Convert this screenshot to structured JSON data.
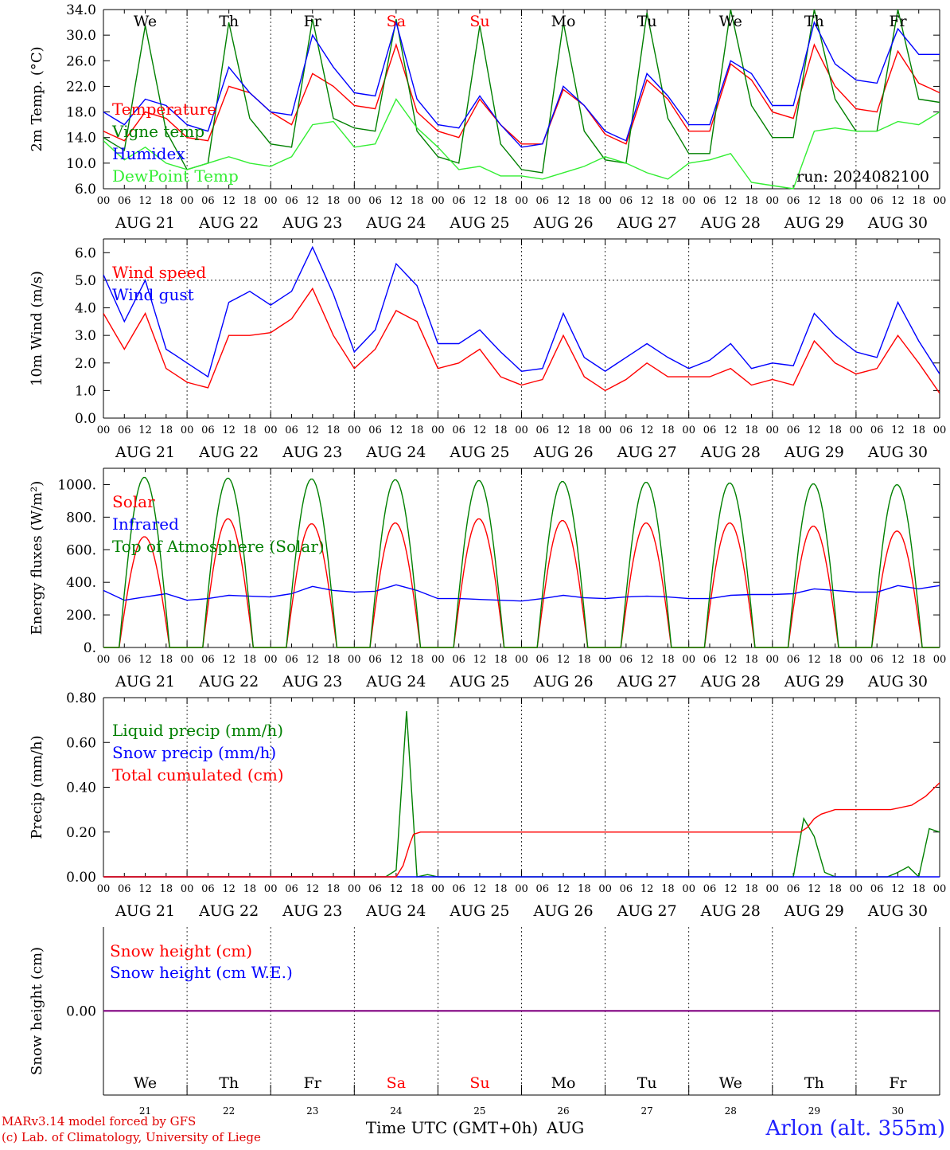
{
  "colors": {
    "red": "#ff0000",
    "green": "#008000",
    "blue": "#0000ff",
    "lightgreen": "#33ee33",
    "purple": "#800080",
    "weekend": "#ff0000",
    "text": "#000000"
  },
  "time_axis": {
    "hour_ticks": [
      "00",
      "06",
      "12",
      "18"
    ],
    "end_tick": "00",
    "date_labels": [
      "AUG 21",
      "AUG 22",
      "AUG 23",
      "AUG 24",
      "AUG 25",
      "AUG 26",
      "AUG 27",
      "AUG 28",
      "AUG 29",
      "AUG 30"
    ],
    "weekdays": [
      "We",
      "Th",
      "Fr",
      "Sa",
      "Su",
      "Mo",
      "Tu",
      "We",
      "Th",
      "Fr"
    ],
    "weekend_flags": [
      false,
      false,
      false,
      true,
      true,
      false,
      false,
      false,
      false,
      false
    ],
    "day_numbers": [
      "21",
      "22",
      "23",
      "24",
      "25",
      "26",
      "27",
      "28",
      "29",
      "30"
    ],
    "month_label": "AUG",
    "xlabel": "Time UTC (GMT+0h)"
  },
  "footer": {
    "model_credit": "MARv3.14 model forced by GFS",
    "lab_credit": "(c) Lab. of Climatology, University of Liege",
    "station": "Arlon (alt. 355m)"
  },
  "chart_data": [
    {
      "type": "line",
      "ylabel": "2m Temp. (°C)",
      "ylim": [
        6,
        34
      ],
      "yticks": [
        "6.0",
        "10.0",
        "14.0",
        "18.0",
        "22.0",
        "26.0",
        "30.0",
        "34.0"
      ],
      "yticks_values": [
        6,
        10,
        14,
        18,
        22,
        26,
        30,
        34
      ],
      "annotation": "run: 2024082100",
      "x_hours": [
        0,
        6,
        12,
        18,
        24,
        30,
        36,
        42,
        48,
        54,
        60,
        66,
        72,
        78,
        84,
        90,
        96,
        102,
        108,
        114,
        120,
        126,
        132,
        138,
        144,
        150,
        156,
        162,
        168,
        174,
        180,
        186,
        192,
        198,
        204,
        210,
        216,
        222,
        228,
        234,
        240
      ],
      "series": [
        {
          "name": "Temperature",
          "color": "red",
          "values": [
            15.0,
            13.5,
            18.0,
            17.0,
            14.0,
            13.5,
            22.0,
            21.0,
            18.0,
            16.0,
            24.0,
            22.0,
            19.0,
            18.5,
            28.5,
            18.0,
            15.0,
            14.0,
            20.0,
            16.0,
            13.0,
            13.0,
            21.5,
            19.0,
            14.5,
            13.0,
            23.0,
            20.0,
            15.0,
            15.0,
            25.5,
            23.0,
            18.0,
            17.0,
            28.5,
            22.0,
            18.5,
            18.0,
            27.5,
            22.5,
            21.0
          ]
        },
        {
          "name": "Vigne temp",
          "color": "green",
          "values": [
            14.0,
            12.0,
            31.5,
            15.0,
            9.0,
            10.0,
            32.0,
            17.0,
            13.0,
            12.5,
            32.5,
            17.0,
            15.5,
            15.0,
            32.5,
            15.0,
            11.0,
            10.0,
            31.5,
            13.0,
            9.0,
            8.5,
            32.0,
            15.0,
            10.5,
            10.0,
            33.5,
            17.0,
            11.5,
            11.5,
            34.0,
            19.0,
            14.0,
            14.0,
            34.0,
            20.0,
            15.0,
            15.0,
            34.0,
            20.0,
            19.5
          ]
        },
        {
          "name": "Humidex",
          "color": "blue",
          "values": [
            18.0,
            16.0,
            20.0,
            19.0,
            16.0,
            15.0,
            25.0,
            21.0,
            18.0,
            17.5,
            30.0,
            25.0,
            21.0,
            20.5,
            32.0,
            20.0,
            16.0,
            15.5,
            20.5,
            16.0,
            12.5,
            13.0,
            22.0,
            19.0,
            15.0,
            13.5,
            24.0,
            20.5,
            16.0,
            16.0,
            26.0,
            24.0,
            19.0,
            19.0,
            32.0,
            25.5,
            23.0,
            22.5,
            31.0,
            27.0,
            27.0
          ]
        },
        {
          "name": "DewPoint Temp",
          "color": "lightgreen",
          "values": [
            13.5,
            10.5,
            12.5,
            10.0,
            9.0,
            10.0,
            11.0,
            10.0,
            9.5,
            11.0,
            16.0,
            16.5,
            12.5,
            13.0,
            20.0,
            15.5,
            12.5,
            9.0,
            9.5,
            8.0,
            8.0,
            7.5,
            8.5,
            9.5,
            11.0,
            10.0,
            8.5,
            7.5,
            10.0,
            10.5,
            11.5,
            7.0,
            6.5,
            6.0,
            15.0,
            15.5,
            15.0,
            15.0,
            16.5,
            16.0,
            18.0
          ]
        }
      ]
    },
    {
      "type": "line",
      "ylabel": "10m Wind (m/s)",
      "ylim": [
        0,
        6.5
      ],
      "yticks": [
        "0.0",
        "1.0",
        "2.0",
        "3.0",
        "4.0",
        "5.0",
        "6.0"
      ],
      "yticks_values": [
        0,
        1,
        2,
        3,
        4,
        5,
        6
      ],
      "reference_line": 5.0,
      "x_hours": [
        0,
        6,
        12,
        18,
        24,
        30,
        36,
        42,
        48,
        54,
        60,
        66,
        72,
        78,
        84,
        90,
        96,
        102,
        108,
        114,
        120,
        126,
        132,
        138,
        144,
        150,
        156,
        162,
        168,
        174,
        180,
        186,
        192,
        198,
        204,
        210,
        216,
        222,
        228,
        234,
        240
      ],
      "series": [
        {
          "name": "Wind speed",
          "color": "red",
          "values": [
            3.8,
            2.5,
            3.8,
            1.8,
            1.3,
            1.1,
            3.0,
            3.0,
            3.1,
            3.6,
            4.7,
            3.0,
            1.8,
            2.5,
            3.9,
            3.5,
            1.8,
            2.0,
            2.5,
            1.5,
            1.2,
            1.4,
            3.0,
            1.5,
            1.0,
            1.4,
            2.0,
            1.5,
            1.5,
            1.5,
            1.8,
            1.2,
            1.4,
            1.2,
            2.8,
            2.0,
            1.6,
            1.8,
            3.0,
            2.0,
            0.9
          ]
        },
        {
          "name": "Wind gust",
          "color": "blue",
          "values": [
            5.2,
            3.5,
            5.0,
            2.5,
            2.0,
            1.5,
            4.2,
            4.6,
            4.1,
            4.6,
            6.2,
            4.5,
            2.4,
            3.2,
            5.6,
            4.8,
            2.7,
            2.7,
            3.2,
            2.4,
            1.7,
            1.8,
            3.8,
            2.2,
            1.7,
            2.2,
            2.7,
            2.2,
            1.8,
            2.1,
            2.7,
            1.8,
            2.0,
            1.9,
            3.8,
            3.0,
            2.4,
            2.2,
            4.2,
            2.8,
            1.6
          ]
        }
      ]
    },
    {
      "type": "line",
      "ylabel": "Energy fluxes (W/m²)",
      "ylim": [
        0,
        1100
      ],
      "yticks": [
        "0.",
        "200.",
        "400.",
        "600.",
        "800.",
        "1000."
      ],
      "yticks_values": [
        0,
        200,
        400,
        600,
        800,
        1000
      ],
      "sun_peaks": {
        "rise_hour_offset": 4.5,
        "set_hour_offset": 19.0,
        "solar_peaks": [
          680,
          790,
          760,
          765,
          790,
          780,
          765,
          765,
          745,
          715
        ],
        "toa_peaks": [
          1045,
          1040,
          1035,
          1030,
          1025,
          1020,
          1015,
          1010,
          1005,
          1000
        ]
      },
      "x_hours": [
        0,
        6,
        12,
        18,
        24,
        30,
        36,
        42,
        48,
        54,
        60,
        66,
        72,
        78,
        84,
        90,
        96,
        102,
        108,
        114,
        120,
        126,
        132,
        138,
        144,
        150,
        156,
        162,
        168,
        174,
        180,
        186,
        192,
        198,
        204,
        210,
        216,
        222,
        228,
        234,
        240
      ],
      "series": [
        {
          "name": "Solar",
          "color": "red",
          "computed_from": "sun_peaks.solar_peaks"
        },
        {
          "name": "Infrared",
          "color": "blue",
          "values": [
            350,
            290,
            310,
            330,
            290,
            300,
            320,
            315,
            310,
            330,
            375,
            350,
            340,
            345,
            385,
            350,
            300,
            300,
            295,
            290,
            285,
            300,
            320,
            305,
            300,
            310,
            315,
            310,
            300,
            300,
            320,
            325,
            325,
            330,
            360,
            350,
            340,
            340,
            380,
            360,
            380
          ]
        },
        {
          "name": "Top of Atmosphere (Solar)",
          "color": "green",
          "computed_from": "sun_peaks.toa_peaks"
        }
      ]
    },
    {
      "type": "line",
      "ylabel": "Precip (mm/h)",
      "ylim": [
        0,
        0.8
      ],
      "yticks": [
        "0.00",
        "0.20",
        "0.40",
        "0.60",
        "0.80"
      ],
      "yticks_values": [
        0,
        0.2,
        0.4,
        0.6,
        0.8
      ],
      "series": [
        {
          "name": "Liquid precip (mm/h)",
          "color": "green",
          "x_hours": [
            0,
            83,
            84,
            85,
            86,
            87,
            88,
            89,
            90,
            91,
            92,
            93,
            94,
            95,
            200,
            201,
            202,
            203,
            204,
            205,
            206,
            207,
            208,
            209,
            210,
            226,
            228,
            230,
            232,
            234,
            236,
            238,
            239,
            240
          ],
          "values": [
            0,
            0,
            0.03,
            0.15,
            0.7,
            0.74,
            0.4,
            0.02,
            0,
            0.01,
            0,
            0.01,
            0,
            0,
            0,
            0.26,
            0.22,
            0.05,
            0.18,
            0.1,
            0,
            0.02,
            0,
            0,
            0,
            0,
            0.02,
            0.04,
            0.05,
            0,
            0.1,
            0.33,
            0.25,
            0.2
          ]
        },
        {
          "name": "Snow precip (mm/h)",
          "color": "blue",
          "x_hours": [
            0,
            240
          ],
          "values": [
            0,
            0
          ]
        },
        {
          "name": "Total cumulated (cm)",
          "color": "red",
          "x_hours": [
            0,
            84,
            86,
            88,
            89,
            90,
            91,
            200,
            202,
            204,
            206,
            208,
            210,
            220,
            226,
            232,
            236,
            240
          ],
          "values": [
            0,
            0,
            0.05,
            0.15,
            0.19,
            0.195,
            0.2,
            0.2,
            0.22,
            0.26,
            0.28,
            0.29,
            0.3,
            0.3,
            0.3,
            0.32,
            0.36,
            0.42
          ]
        }
      ]
    },
    {
      "type": "line",
      "ylabel": "Snow height (cm)",
      "ylim": [
        -1,
        1
      ],
      "yticks": [
        "0.00"
      ],
      "yticks_values": [
        0
      ],
      "x_hours": [
        0,
        240
      ],
      "series": [
        {
          "name": "Snow height (cm)",
          "color": "red",
          "values": [
            0,
            0
          ]
        },
        {
          "name": "Snow height (cm W.E.)",
          "color": "blue",
          "values": [
            0,
            0
          ]
        }
      ]
    }
  ]
}
